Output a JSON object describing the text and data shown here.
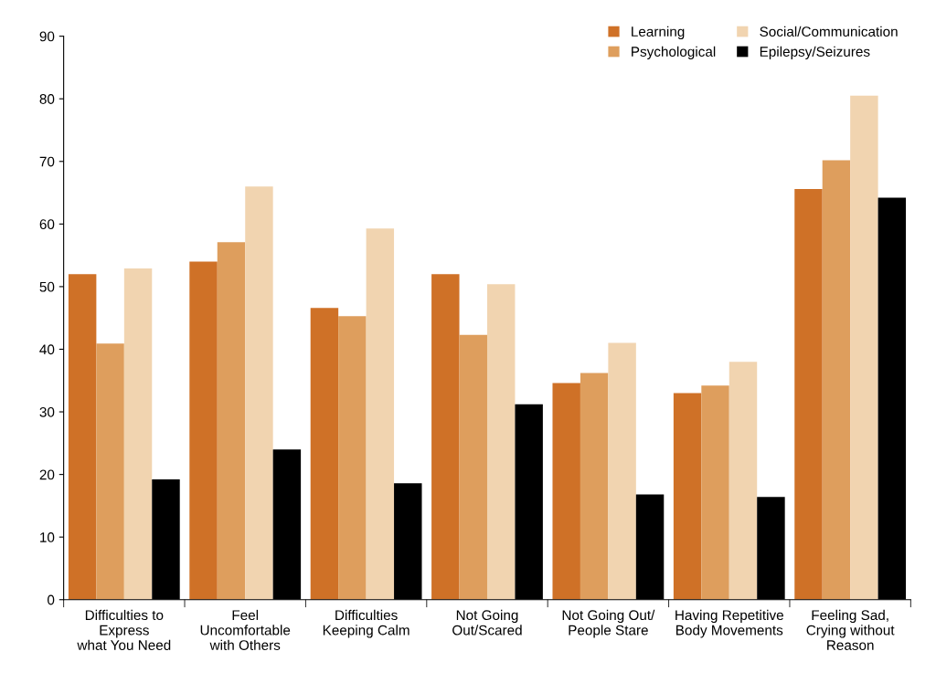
{
  "chart_data": {
    "type": "bar",
    "categories": [
      "Difficulties to\nExpress\nwhat You Need",
      "Feel\nUncomfortable\nwith Others",
      "Difficulties\nKeeping Calm",
      "Not Going\nOut/Scared",
      "Not Going Out/\nPeople Stare",
      "Having Repetitive\nBody Movements",
      "Feeling Sad,\nCrying without\nReason"
    ],
    "series": [
      {
        "name": "Learning",
        "color": "#cf7127",
        "values": [
          52,
          54,
          46.6,
          52,
          34.6,
          33,
          65.6
        ]
      },
      {
        "name": "Psychological",
        "color": "#de9e5d",
        "values": [
          40.9,
          57.1,
          45.3,
          42.3,
          36.2,
          34.2,
          70.2
        ]
      },
      {
        "name": "Social/Communication",
        "color": "#f1d4b0",
        "values": [
          52.9,
          66,
          59.3,
          50.4,
          41,
          38,
          80.5
        ]
      },
      {
        "name": "Epilepsy/Seizures",
        "color": "#000000",
        "values": [
          19.2,
          24,
          18.6,
          31.2,
          16.8,
          16.4,
          64.2
        ]
      }
    ],
    "ylim": [
      0,
      90
    ],
    "yticks": [
      0,
      10,
      20,
      30,
      40,
      50,
      60,
      70,
      80,
      90
    ],
    "grid": false,
    "legend": "top right"
  }
}
